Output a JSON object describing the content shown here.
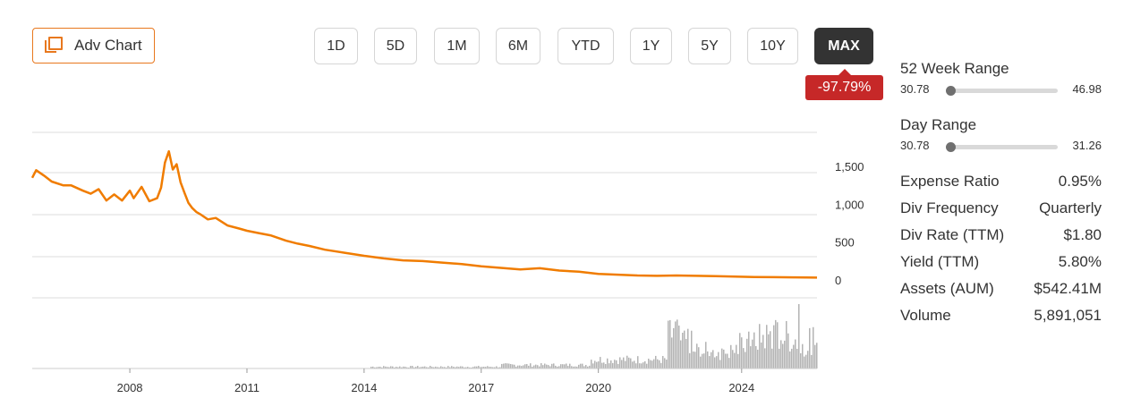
{
  "toolbar": {
    "adv_chart_label": "Adv Chart",
    "ranges": [
      "1D",
      "5D",
      "1M",
      "6M",
      "YTD",
      "1Y",
      "5Y",
      "10Y",
      "MAX"
    ],
    "active_range": "MAX",
    "change": "-97.79%"
  },
  "stats": {
    "week52": {
      "title": "52 Week Range",
      "low": "30.78",
      "high": "46.98",
      "position": 0.0
    },
    "day": {
      "title": "Day Range",
      "low": "30.78",
      "high": "31.26",
      "position": 0.0
    },
    "items": [
      {
        "label": "Expense Ratio",
        "value": "0.95%"
      },
      {
        "label": "Div Frequency",
        "value": "Quarterly"
      },
      {
        "label": "Div Rate (TTM)",
        "value": "$1.80"
      },
      {
        "label": "Yield (TTM)",
        "value": "5.80%"
      },
      {
        "label": "Assets (AUM)",
        "value": "$542.41M"
      },
      {
        "label": "Volume",
        "value": "5,891,051"
      }
    ]
  },
  "colors": {
    "price_line": "#f07c00",
    "volume_bars": "#b3b3b3",
    "negative_badge": "#c62828",
    "accent": "#e8781e"
  },
  "chart_data": {
    "type": "line",
    "xlabel": "",
    "ylabel": "",
    "x_ticks": [
      "2008",
      "2011",
      "2014",
      "2017",
      "2020",
      "2024"
    ],
    "x_tick_values": [
      2008,
      2011,
      2014,
      2017,
      2020,
      2023.67
    ],
    "xlim": [
      2005.5,
      2025.6
    ],
    "y_ticks": [
      "1,500",
      "1,000",
      "500",
      "0"
    ],
    "y_tick_values": [
      1500,
      1000,
      500,
      0
    ],
    "ylim": [
      -200,
      1950
    ],
    "grid": true,
    "series": [
      {
        "x": [
          2005.5,
          2005.6,
          2005.8,
          2006.0,
          2006.3,
          2006.5,
          2006.8,
          2007.0,
          2007.2,
          2007.4,
          2007.6,
          2007.8,
          2008.0,
          2008.1,
          2008.3,
          2008.5,
          2008.7,
          2008.8,
          2008.9,
          2009.0,
          2009.1,
          2009.2,
          2009.3,
          2009.4,
          2009.5,
          2009.6,
          2009.7,
          2009.8,
          2010.0,
          2010.2,
          2010.5,
          2010.8,
          2011.0,
          2011.3,
          2011.6,
          2012.0,
          2012.3,
          2012.6,
          2013.0,
          2013.5,
          2014.0,
          2014.5,
          2015.0,
          2015.5,
          2016.0,
          2016.5,
          2017.0,
          2017.5,
          2018.0,
          2018.5,
          2019.0,
          2019.5,
          2020.0,
          2020.5,
          2021.0,
          2021.5,
          2022.0,
          2022.5,
          2023.0,
          2023.5,
          2024.0,
          2024.5,
          2025.0,
          2025.6
        ],
        "y": [
          1350,
          1450,
          1380,
          1300,
          1250,
          1250,
          1180,
          1140,
          1200,
          1050,
          1130,
          1050,
          1180,
          1080,
          1230,
          1040,
          1080,
          1220,
          1550,
          1700,
          1460,
          1530,
          1290,
          1150,
          1020,
          950,
          900,
          870,
          800,
          820,
          720,
          680,
          650,
          620,
          590,
          520,
          480,
          450,
          400,
          360,
          320,
          285,
          260,
          250,
          230,
          210,
          180,
          160,
          140,
          155,
          125,
          110,
          80,
          70,
          60,
          55,
          60,
          55,
          50,
          45,
          40,
          38,
          35,
          31
        ]
      }
    ]
  }
}
